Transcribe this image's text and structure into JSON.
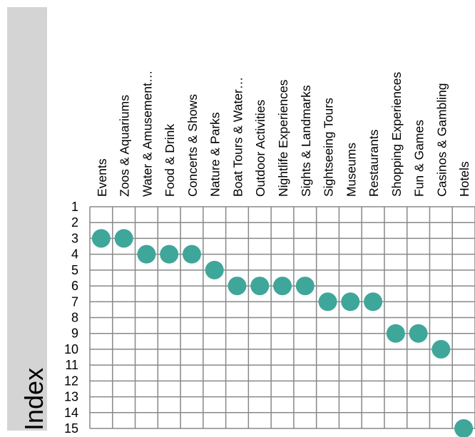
{
  "chart_data": {
    "type": "scatter",
    "title": "",
    "xlabel": "",
    "ylabel": "Index",
    "categories": [
      "Events",
      "Zoos & Aquariums",
      "Water & Amusement…",
      "Food & Drink",
      "Concerts & Shows",
      "Nature & Parks",
      "Boat Tours & Water…",
      "Outdoor Activities",
      "Nightlife Experiences",
      "Sights & Landmarks",
      "Sightseeing Tours",
      "Museums",
      "Restaurants",
      "Shopping Experiences",
      "Fun & Games",
      "Casinos & Gambling",
      "Hotels"
    ],
    "y_ticks": [
      "1",
      "2",
      "3",
      "4",
      "5",
      "6",
      "7",
      "8",
      "9",
      "10",
      "11",
      "12",
      "13",
      "14",
      "15"
    ],
    "values": [
      3,
      3,
      4,
      4,
      4,
      5,
      6,
      6,
      6,
      6,
      7,
      7,
      7,
      9,
      9,
      10,
      15
    ],
    "ylim": [
      1,
      15
    ],
    "y_inverted": true,
    "grid": true,
    "colors": {
      "point": "#3fa69a",
      "grid": "#888888",
      "sidebar": "#d4d4d4"
    }
  }
}
